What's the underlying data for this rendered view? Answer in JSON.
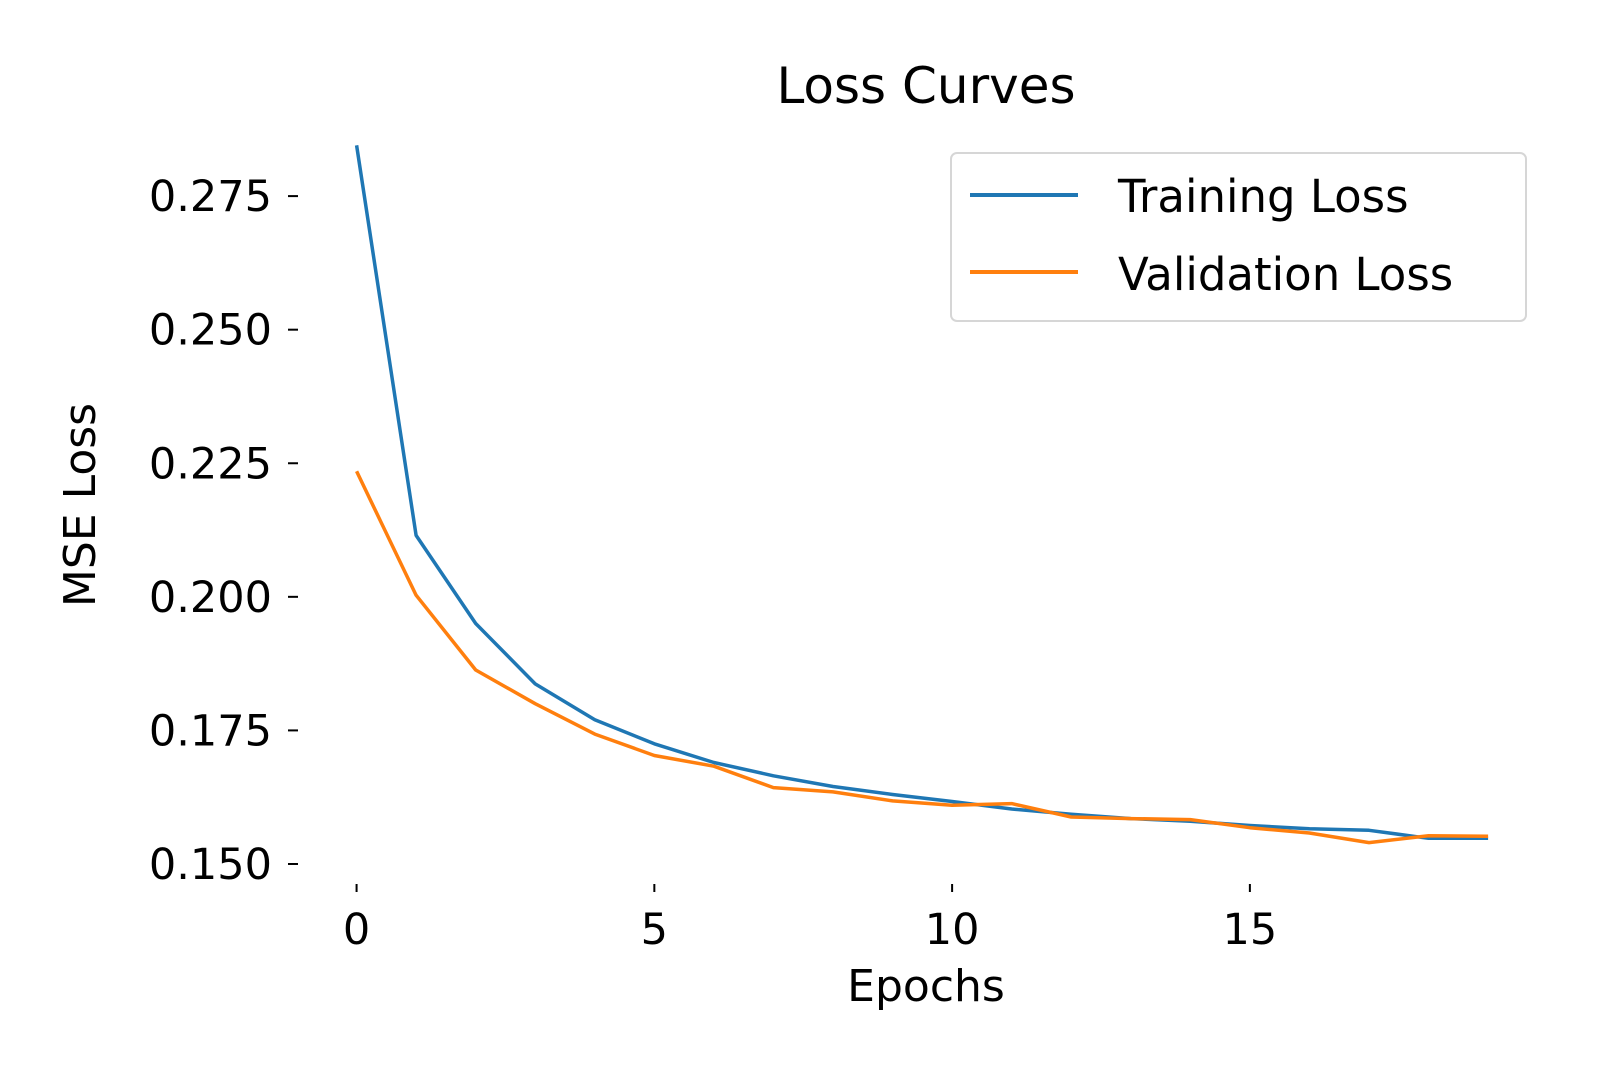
{
  "chart_data": {
    "type": "line",
    "title": "Loss Curves",
    "xlabel": "Epochs",
    "ylabel": "MSE Loss",
    "xlim": [
      -0.95,
      19.2
    ],
    "ylim": [
      0.1485,
      0.2855
    ],
    "xticks": [
      0,
      5,
      10,
      15
    ],
    "xtick_labels": [
      "0",
      "5",
      "10",
      "15"
    ],
    "yticks": [
      0.15,
      0.175,
      0.2,
      0.225,
      0.25,
      0.275
    ],
    "ytick_labels": [
      "0.150",
      "0.175",
      "0.200",
      "0.225",
      "0.250",
      "0.275"
    ],
    "grid": false,
    "legend_position": "top-right",
    "x": [
      0,
      1,
      2,
      3,
      4,
      5,
      6,
      7,
      8,
      9,
      10,
      11,
      12,
      13,
      14,
      15,
      16,
      17,
      18,
      19
    ],
    "series": [
      {
        "name": "Training Loss",
        "color": "#1f77b4",
        "values": [
          0.2845,
          0.2115,
          0.195,
          0.1837,
          0.177,
          0.1725,
          0.169,
          0.1665,
          0.1645,
          0.163,
          0.1617,
          0.1603,
          0.1593,
          0.1585,
          0.158,
          0.1572,
          0.1566,
          0.1563,
          0.1548,
          0.1548
        ]
      },
      {
        "name": "Validation Loss",
        "color": "#ff7f0e",
        "values": [
          0.2235,
          0.2003,
          0.1863,
          0.18,
          0.1743,
          0.1703,
          0.1683,
          0.1643,
          0.1635,
          0.1618,
          0.161,
          0.1613,
          0.1588,
          0.1585,
          0.1583,
          0.1568,
          0.1558,
          0.154,
          0.1553,
          0.1552
        ]
      }
    ]
  }
}
